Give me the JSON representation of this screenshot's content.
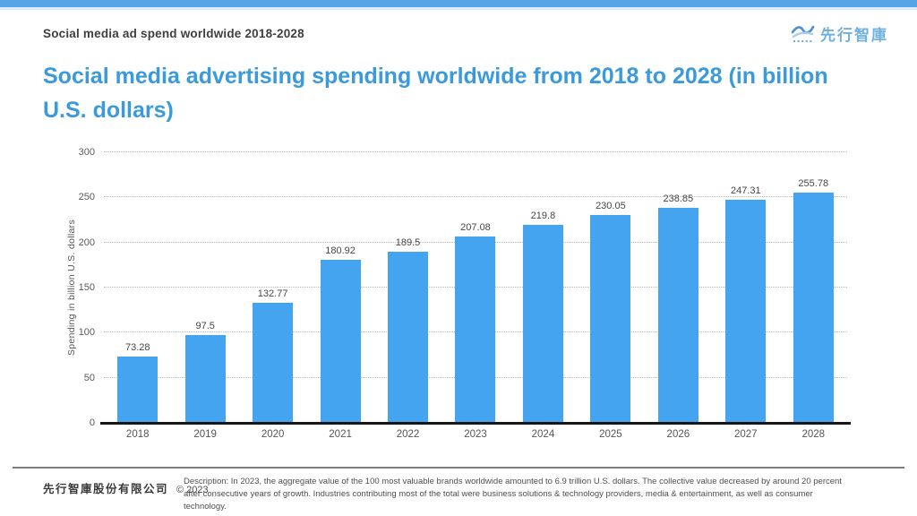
{
  "header": {
    "label": "Social media ad spend worldwide 2018-2028",
    "logo_text": "先行智庫",
    "logo_color": "#6fb0e0"
  },
  "title": "Social media advertising spending worldwide from 2018 to 2028 (in billion U.S. dollars)",
  "chart_data": {
    "type": "bar",
    "categories": [
      "2018",
      "2019",
      "2020",
      "2021",
      "2022",
      "2023",
      "2024",
      "2025",
      "2026",
      "2027",
      "2028"
    ],
    "values": [
      73.28,
      97.5,
      132.77,
      180.92,
      189.5,
      207.08,
      219.8,
      230.05,
      238.85,
      247.31,
      255.78
    ],
    "title": "Social media advertising spending worldwide from 2018 to 2028 (in billion U.S. dollars)",
    "xlabel": "",
    "ylabel": "Spending in billion U.S. dollars",
    "ylim": [
      0,
      300
    ],
    "ytick_interval": 50,
    "bar_color": "#44a4ef",
    "grid": true,
    "gridline_style": "dotted",
    "legend": false,
    "value_labels": true
  },
  "colors": {
    "accent_strip": "#55a4e8",
    "accent_strip_light": "#d9ecfa",
    "title_blue": "#3a9adb",
    "bar_blue": "#44a4ef"
  },
  "footer": {
    "company": "先行智庫股份有限公司",
    "copyright": "© 2023",
    "description": "Description: In 2023, the aggregate value of the 100 most valuable brands worldwide amounted to 6.9 trillion U.S. dollars. The collective value decreased by around 20 percent after consecutive years of growth. Industries contributing most of the total were business solutions & technology providers, media & entertainment, as well as consumer technology."
  }
}
